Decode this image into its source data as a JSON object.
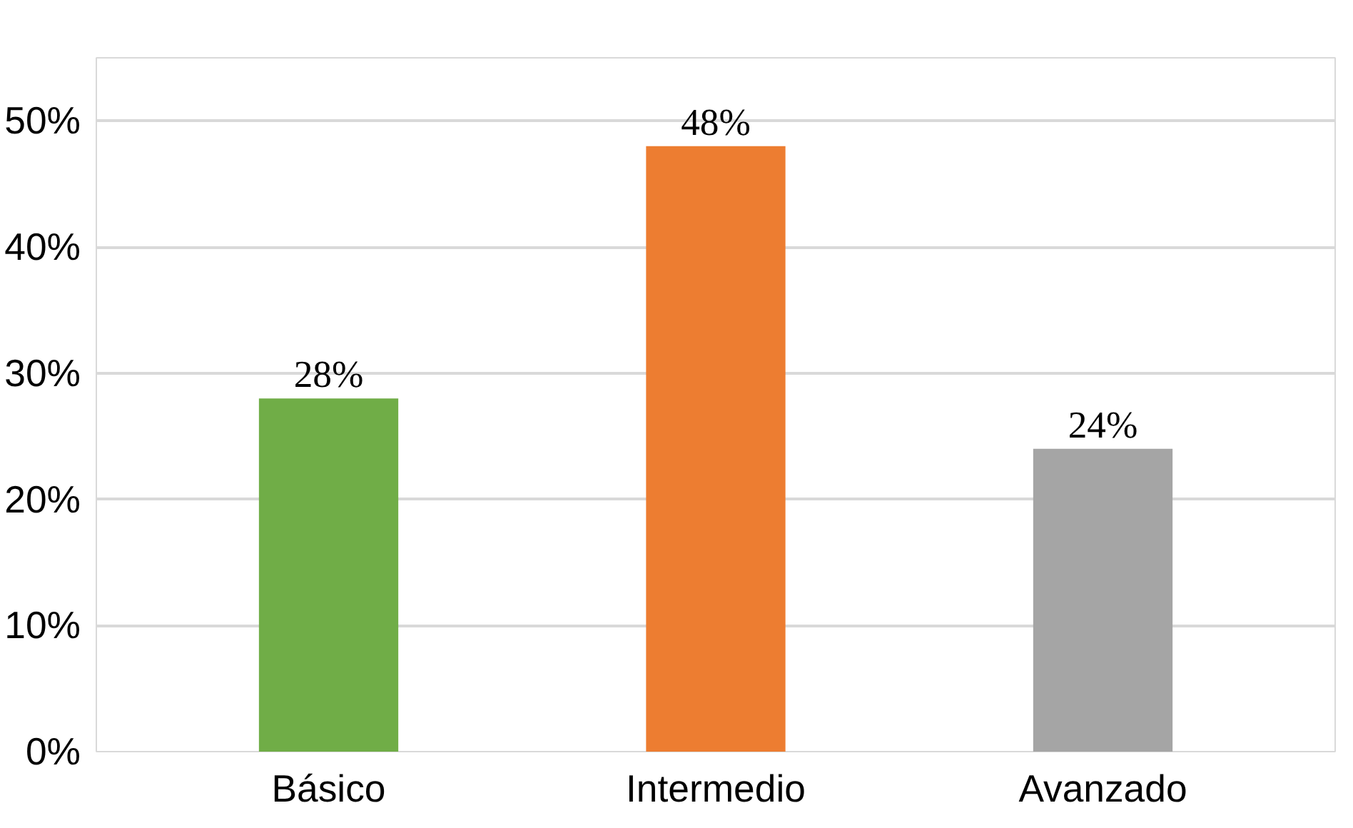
{
  "chart_data": {
    "type": "bar",
    "categories": [
      "Básico",
      "Intermedio",
      "Avanzado"
    ],
    "values": [
      28,
      48,
      24
    ],
    "colors": [
      "#70ad47",
      "#ed7d31",
      "#a5a5a5"
    ],
    "value_labels": [
      "28%",
      "48%",
      "24%"
    ],
    "ylim": [
      0,
      55
    ],
    "yticks": [
      {
        "value": 0,
        "label": "0%"
      },
      {
        "value": 10,
        "label": "10%"
      },
      {
        "value": 20,
        "label": "20%"
      },
      {
        "value": 30,
        "label": "30%"
      },
      {
        "value": 40,
        "label": "40%"
      },
      {
        "value": 50,
        "label": "50%"
      }
    ],
    "grid": "y"
  }
}
